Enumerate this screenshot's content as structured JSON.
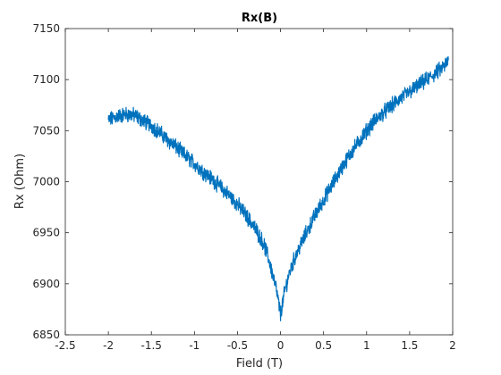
{
  "chart_data": {
    "type": "line",
    "title": "Rx(B)",
    "xlabel": "Field (T)",
    "ylabel": "Rx (Ohm)",
    "xlim": [
      -2.5,
      2
    ],
    "ylim": [
      6850,
      7150
    ],
    "x_ticks": [
      -2.5,
      -2,
      -1.5,
      -1,
      -0.5,
      0,
      0.5,
      1,
      1.5,
      2
    ],
    "x_tick_labels": [
      "-2.5",
      "-2",
      "-1.5",
      "-1",
      "-0.5",
      "0",
      "0.5",
      "1",
      "1.5",
      "2"
    ],
    "y_ticks": [
      6850,
      6900,
      6950,
      7000,
      7050,
      7100,
      7150
    ],
    "y_tick_labels": [
      "6850",
      "6900",
      "6950",
      "7000",
      "7050",
      "7100",
      "7150"
    ],
    "grid": false,
    "line_color": "#0072BD",
    "series": [
      {
        "x": [
          -2.0,
          -1.9,
          -1.8,
          -1.7,
          -1.6,
          -1.5,
          -1.4,
          -1.3,
          -1.2,
          -1.1,
          -1.0,
          -0.9,
          -0.8,
          -0.7,
          -0.6,
          -0.5,
          -0.4,
          -0.3,
          -0.2,
          -0.15,
          -0.1,
          -0.05,
          0.0,
          0.05,
          0.1,
          0.15,
          0.2,
          0.3,
          0.4,
          0.5,
          0.6,
          0.7,
          0.8,
          0.9,
          1.0,
          1.1,
          1.2,
          1.3,
          1.4,
          1.5,
          1.6,
          1.7,
          1.8,
          1.9,
          1.95
        ],
        "values": [
          7060,
          7064,
          7066,
          7065,
          7060,
          7055,
          7048,
          7040,
          7033,
          7025,
          7018,
          7010,
          7003,
          6995,
          6987,
          6978,
          6967,
          6955,
          6940,
          6928,
          6912,
          6895,
          6870,
          6893,
          6910,
          6922,
          6932,
          6950,
          6967,
          6982,
          6997,
          7012,
          7026,
          7038,
          7050,
          7060,
          7068,
          7075,
          7082,
          7088,
          7094,
          7100,
          7106,
          7113,
          7118
        ]
      }
    ]
  }
}
